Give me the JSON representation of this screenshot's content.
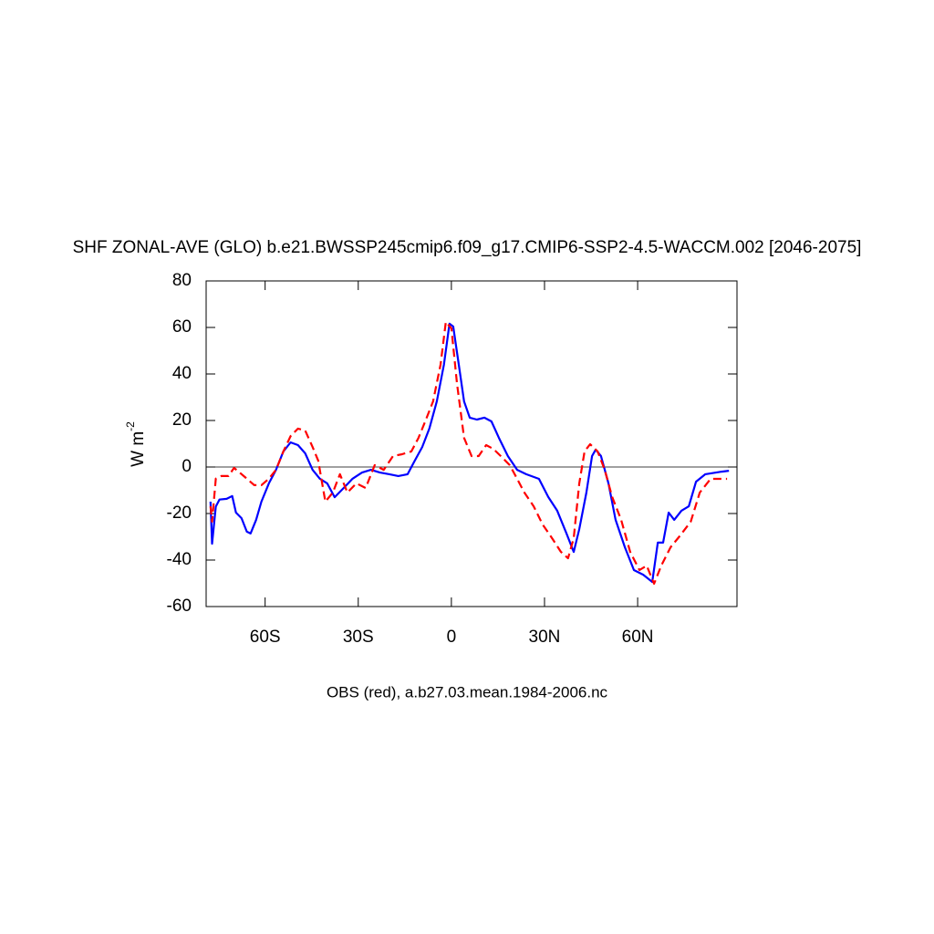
{
  "chart_data": {
    "type": "line",
    "title": "SHF ZONAL-AVE (GLO) b.e21.BWSSP245cmip6.f09_g17.CMIP6-SSP2-4.5-WACCM.002 [2046-2075]",
    "xlabel": "OBS (red), a.b27.03.mean.1984-2006.nc",
    "ylabel": "W m",
    "ylabel_superscript": "-2",
    "xlim": [
      -79,
      92
    ],
    "ylim": [
      -60,
      80
    ],
    "xticks": [
      {
        "value": -60,
        "label": "60S"
      },
      {
        "value": -30,
        "label": "30S"
      },
      0,
      {
        "value": 30,
        "label": "30N"
      },
      {
        "value": 60,
        "label": "60N"
      }
    ],
    "yticks": [
      -60,
      -40,
      -20,
      0,
      20,
      40,
      60,
      80
    ],
    "reference_line": 0,
    "series": [
      {
        "color": "#0000ff",
        "dash": "solid",
        "x": [
          -77.6,
          -77.1,
          -75.9,
          -74.7,
          -72.4,
          -70.6,
          -69.4,
          -67.6,
          -65.9,
          -64.7,
          -62.9,
          -61.2,
          -58.8,
          -56.5,
          -54.1,
          -51.8,
          -49.4,
          -47.1,
          -44.7,
          -42.4,
          -40,
          -37.6,
          -34.7,
          -31.8,
          -28.8,
          -25.9,
          -23,
          -20,
          -17.1,
          -14.1,
          -11.8,
          -9.4,
          -7.1,
          -4.7,
          -2.4,
          -0.6,
          0.6,
          2.4,
          4.1,
          5.9,
          8.2,
          10.6,
          12.9,
          15.3,
          18.2,
          21.2,
          24.1,
          28.2,
          31.2,
          34.1,
          37.1,
          39.4,
          41.2,
          43.5,
          45.3,
          46.5,
          48.2,
          50.6,
          52.9,
          55.9,
          58.8,
          61.8,
          64.7,
          66.5,
          68.2,
          70,
          71.8,
          74.1,
          76.5,
          78.8,
          81.8,
          87.1,
          89.4
        ],
        "values": [
          -14.9,
          -33,
          -17,
          -14,
          -13.7,
          -12.5,
          -19.6,
          -22,
          -27.8,
          -28.6,
          -22.7,
          -14.9,
          -7,
          -1.2,
          6.7,
          10.6,
          9.4,
          5.9,
          -1.2,
          -5,
          -7,
          -13,
          -9,
          -5,
          -2.4,
          -1.2,
          -2.4,
          -3.1,
          -3.9,
          -3.1,
          2.7,
          8.6,
          16.5,
          28.2,
          44,
          61.6,
          60.4,
          44,
          28.2,
          21.2,
          20.4,
          21.2,
          19.6,
          12.5,
          4.7,
          -1.2,
          -3.1,
          -5.1,
          -12.9,
          -18.8,
          -28.6,
          -36.5,
          -26.7,
          -11,
          4.7,
          7.5,
          4.7,
          -7,
          -22.7,
          -34.5,
          -44.3,
          -46.3,
          -49.4,
          -32.5,
          -32.5,
          -19.6,
          -22.7,
          -18.8,
          -16.9,
          -6.3,
          -3.1,
          -2,
          -1.6
        ]
      },
      {
        "color": "#ff0000",
        "dash": "dashed",
        "x": [
          -77.6,
          -77.1,
          -75.9,
          -74.1,
          -71.8,
          -70,
          -68.2,
          -65.9,
          -63.5,
          -61.2,
          -58.8,
          -56.5,
          -54.1,
          -51.8,
          -49.4,
          -47.1,
          -44.7,
          -42.9,
          -40.6,
          -38.2,
          -35.9,
          -33.5,
          -30.6,
          -27.6,
          -24.7,
          -21.8,
          -18.8,
          -15.9,
          -12.9,
          -10.6,
          -8.2,
          -5.9,
          -3.5,
          -1.8,
          0,
          1.8,
          4.1,
          6.5,
          8.8,
          11.2,
          13.5,
          15.9,
          18.8,
          21.2,
          23.5,
          26.5,
          29.4,
          32.4,
          35.3,
          37.6,
          39.4,
          41.2,
          42.9,
          44.7,
          47.1,
          49.4,
          51.8,
          54.7,
          57.6,
          60.6,
          62.9,
          65.3,
          67.6,
          70.6,
          73.5,
          77.1,
          80,
          83.5,
          88.8
        ],
        "values": [
          -16.9,
          -23.5,
          -5,
          -3.9,
          -3.9,
          -0.4,
          -2.4,
          -5,
          -7.8,
          -7.8,
          -5,
          -1.2,
          6.7,
          13.3,
          16.5,
          15.7,
          8.6,
          2.7,
          -14.9,
          -11,
          -3.1,
          -11,
          -7,
          -9,
          0.8,
          -1.2,
          4.7,
          5.5,
          6.7,
          12.5,
          20.4,
          28.2,
          44,
          62.4,
          59.6,
          36,
          12.5,
          4.7,
          4.7,
          9.4,
          7.8,
          4.7,
          0.8,
          -5.1,
          -11,
          -16.9,
          -24.7,
          -30.6,
          -36.5,
          -39.2,
          -30.6,
          -7,
          6.7,
          9.8,
          6.7,
          -1.2,
          -12.9,
          -22.7,
          -36.5,
          -44.3,
          -42.4,
          -50.2,
          -42.4,
          -34.5,
          -29.8,
          -23.5,
          -11,
          -5.1,
          -5.1
        ]
      }
    ]
  }
}
